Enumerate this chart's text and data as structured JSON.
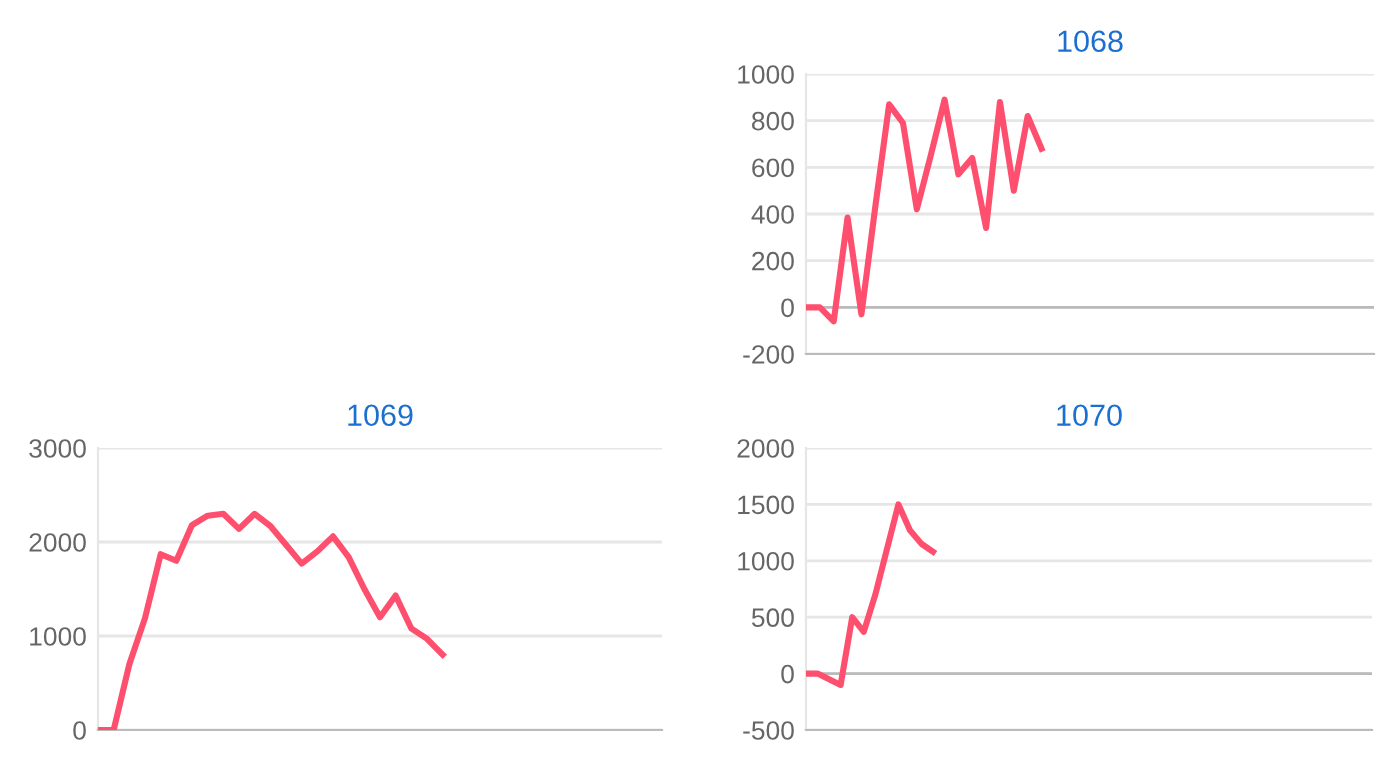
{
  "chart_data": [
    {
      "type": "line",
      "title": "1068",
      "categories": [
        null,
        null,
        null,
        null,
        null,
        null,
        null,
        null,
        null,
        null,
        null,
        null,
        null,
        null,
        null,
        null,
        null,
        null,
        null,
        null,
        null,
        null,
        null,
        null,
        null,
        null,
        null,
        null,
        null,
        null,
        null,
        null,
        null,
        null,
        null,
        null,
        null,
        null,
        null,
        null,
        null,
        null
      ],
      "series": [
        {
          "color": "#ff4f6e",
          "values": [
            0,
            0,
            -60,
            385,
            -30,
            430,
            870,
            790,
            420,
            650,
            890,
            570,
            640,
            340,
            880,
            500,
            820,
            680,
            null,
            null,
            null,
            null,
            null,
            null,
            null,
            null,
            null,
            null,
            null,
            null,
            null,
            null,
            null,
            null,
            null,
            null,
            null,
            null,
            null,
            null,
            null,
            null
          ]
        }
      ],
      "ylim": [
        -200,
        1000
      ],
      "yticks": [
        -200,
        0,
        200,
        400,
        600,
        800,
        1000
      ],
      "grid": "y",
      "tick_labels": "y",
      "marker": "none",
      "line_style": "solid"
    },
    {
      "type": "line",
      "title": "1069",
      "categories": [
        null,
        null,
        null,
        null,
        null,
        null,
        null,
        null,
        null,
        null,
        null,
        null,
        null,
        null,
        null,
        null,
        null,
        null,
        null,
        null,
        null,
        null,
        null,
        null,
        null,
        null,
        null,
        null,
        null,
        null,
        null,
        null,
        null,
        null,
        null,
        null,
        null
      ],
      "series": [
        {
          "color": "#ff4f6e",
          "values": [
            0,
            0,
            700,
            1190,
            1870,
            1800,
            2180,
            2280,
            2300,
            2140,
            2300,
            2170,
            1970,
            1770,
            1900,
            2060,
            1840,
            1500,
            1200,
            1430,
            1080,
            970,
            800,
            null,
            null,
            null,
            null,
            null,
            null,
            null,
            null,
            null,
            null,
            null,
            null,
            null,
            null
          ]
        }
      ],
      "ylim": [
        0,
        3000
      ],
      "yticks": [
        0,
        1000,
        2000,
        3000
      ],
      "grid": "y",
      "tick_labels": "y",
      "marker": "none",
      "line_style": "solid"
    },
    {
      "type": "line",
      "title": "1070",
      "categories": [
        null,
        null,
        null,
        null,
        null,
        null,
        null,
        null,
        null,
        null,
        null,
        null,
        null,
        null,
        null,
        null,
        null,
        null,
        null,
        null,
        null,
        null,
        null,
        null,
        null,
        null,
        null,
        null,
        null,
        null,
        null,
        null,
        null,
        null,
        null,
        null,
        null,
        null,
        null,
        null,
        null,
        null,
        null,
        null,
        null,
        null,
        null,
        null,
        null,
        null
      ],
      "series": [
        {
          "color": "#ff4f6e",
          "values": [
            0,
            0,
            -50,
            -100,
            500,
            370,
            700,
            1100,
            1500,
            1270,
            1150,
            1080,
            null,
            null,
            null,
            null,
            null,
            null,
            null,
            null,
            null,
            null,
            null,
            null,
            null,
            null,
            null,
            null,
            null,
            null,
            null,
            null,
            null,
            null,
            null,
            null,
            null,
            null,
            null,
            null,
            null,
            null,
            null,
            null,
            null,
            null,
            null,
            null,
            null,
            null
          ]
        }
      ],
      "ylim": [
        -500,
        2000
      ],
      "yticks": [
        -500,
        0,
        500,
        1000,
        1500,
        2000
      ],
      "grid": "y",
      "tick_labels": "y",
      "marker": "none",
      "line_style": "solid"
    }
  ]
}
